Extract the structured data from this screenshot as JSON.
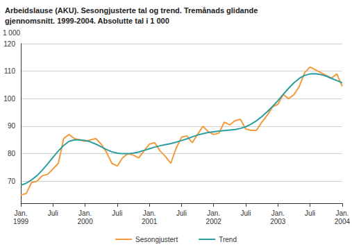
{
  "chart_data": {
    "type": "line",
    "title": "Arbeidslause (AKU). Sesongjusterte tal og trend. Tremånads glidande\ngjennomsnitt. 1999-2004. Absolutte tal i 1 000",
    "ylabel": "1 000",
    "categories": [
      "Jan.\n1999",
      null,
      null,
      null,
      null,
      null,
      "Juli",
      null,
      null,
      null,
      null,
      null,
      "Jan.\n2000",
      null,
      null,
      null,
      null,
      null,
      "Juli",
      null,
      null,
      null,
      null,
      null,
      "Jan.\n2001",
      null,
      null,
      null,
      null,
      null,
      "Juli",
      null,
      null,
      null,
      null,
      null,
      "Jan.\n2002",
      null,
      null,
      null,
      null,
      null,
      "Juli",
      null,
      null,
      null,
      null,
      null,
      "Jan.\n2003",
      null,
      null,
      null,
      null,
      null,
      "Juli",
      null,
      null,
      null,
      null,
      null,
      "Jan.\n2004"
    ],
    "series": [
      {
        "name": "Sesongjustert",
        "color": "#f39a3c",
        "values": [
          65,
          65.5,
          69.5,
          70,
          72,
          72.5,
          74.5,
          76.5,
          85.5,
          87,
          85.5,
          85,
          84.5,
          85,
          85.5,
          83.5,
          80.5,
          76.5,
          75.5,
          78.5,
          80,
          79.5,
          78.5,
          81,
          83.5,
          84,
          81,
          79,
          76.5,
          82,
          86,
          86.5,
          84,
          87,
          90,
          88,
          87,
          87.5,
          91.5,
          90.5,
          92,
          92.5,
          89,
          88.5,
          88.5,
          91.5,
          94,
          97,
          98,
          101.5,
          100,
          101.5,
          104.5,
          109.5,
          111.5,
          110.5,
          109.5,
          108.5,
          107.5,
          109,
          104.5
        ]
      },
      {
        "name": "Trend",
        "color": "#2a9d9f",
        "values": [
          68.5,
          69.3,
          70.5,
          72,
          74,
          76.3,
          78.7,
          81,
          83,
          84.5,
          85,
          85,
          84.8,
          84.3,
          83.5,
          82.5,
          81.5,
          80.7,
          80.2,
          80,
          80,
          80.2,
          80.6,
          81.2,
          81.8,
          82.4,
          82.9,
          83.3,
          83.7,
          84.2,
          84.8,
          85.4,
          86.1,
          86.8,
          87.3,
          87.7,
          88,
          88.2,
          88.4,
          88.6,
          88.8,
          89.2,
          89.8,
          90.8,
          92,
          93.5,
          95.3,
          97.2,
          99.3,
          101.6,
          103.8,
          105.8,
          107.4,
          108.5,
          109,
          109.1,
          108.8,
          108.2,
          107.4,
          106.6,
          105.8
        ]
      }
    ],
    "ylim": [
      62,
      120
    ],
    "yticks": [
      70,
      80,
      90,
      100,
      110,
      120
    ],
    "grid": true,
    "legend": "bottom"
  }
}
